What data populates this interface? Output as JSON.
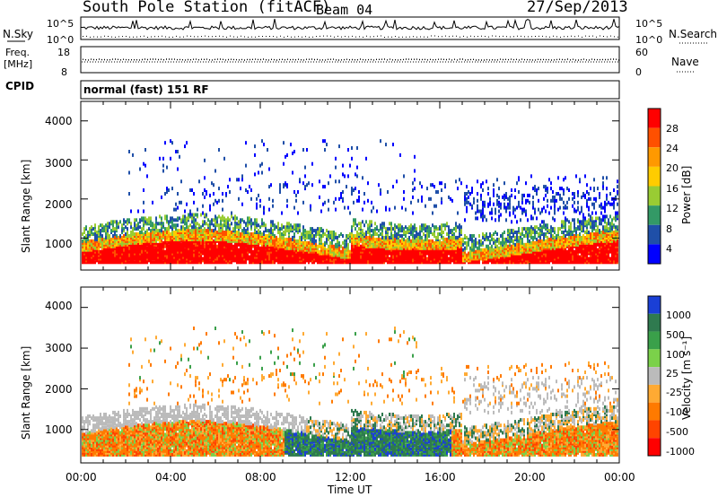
{
  "header": {
    "station": "South Pole Station (fitACF)",
    "beam": "Beam 04",
    "date": "27/Sep/2013"
  },
  "panels_top": {
    "nsky_label": "N.Sky",
    "nsearch_label": "N.Search",
    "nsky_ticks": [
      "10^5",
      "10^0"
    ],
    "nsearch_ticks": [
      "10^5",
      "10^0"
    ],
    "freq_label_line1": "Freq.",
    "freq_label_line2": "[MHz]",
    "freq_ticks": [
      "18",
      "8"
    ],
    "nave_label": "Nave",
    "nave_ticks": [
      "60",
      "0"
    ],
    "cpid_label": "CPID",
    "cpid_value": "normal (fast) 151 RF"
  },
  "chart_data": [
    {
      "type": "heatmap",
      "name": "power",
      "ylabel": "Slant Range [km]",
      "yticks": [
        1000,
        2000,
        3000,
        4000
      ],
      "ylim": [
        180,
        4500
      ],
      "xlim": [
        0,
        24
      ],
      "colorbar": {
        "label": "Power [dB]",
        "ticks": [
          "28",
          "24",
          "20",
          "16",
          "12",
          "8",
          "4"
        ],
        "colors": [
          "#ff0000",
          "#ff5000",
          "#ff9900",
          "#ffcc00",
          "#99cc33",
          "#339966",
          "#1f4fa8",
          "#0000ff"
        ]
      }
    },
    {
      "type": "heatmap",
      "name": "velocity",
      "ylabel": "Slant Range [km]",
      "yticks": [
        1000,
        2000,
        3000,
        4000
      ],
      "ylim": [
        180,
        4500
      ],
      "xlim": [
        0,
        24
      ],
      "colorbar": {
        "label": "Velocity [m s⁻¹]",
        "ticks": [
          "1000",
          "500",
          "100",
          "25",
          "-25",
          "-100",
          "-500",
          "-1000"
        ],
        "colors": [
          "#1a3fd6",
          "#2f7a4f",
          "#3aa04a",
          "#7bd14a",
          "#bbbbbb",
          "#ffaa33",
          "#ff7a00",
          "#ff4400",
          "#ff0000"
        ]
      },
      "xticks": [
        "00:00",
        "04:00",
        "08:00",
        "12:00",
        "16:00",
        "20:00",
        "00:00"
      ],
      "xlabel": "Time UT"
    }
  ]
}
